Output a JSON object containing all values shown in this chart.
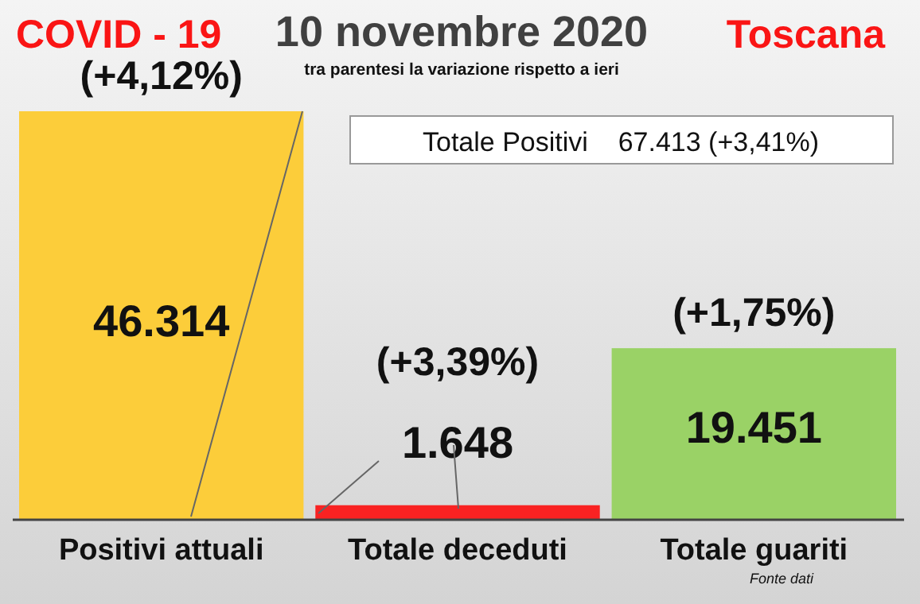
{
  "chart_data": {
    "type": "bar",
    "title": "10 novembre 2020",
    "subtitle": "tra parentesi la variazione rispetto a ieri",
    "categories": [
      "Positivi attuali",
      "Totale deceduti",
      "Totale guariti"
    ],
    "values": [
      46314,
      1648,
      19451
    ],
    "colors": [
      "#fccd3a",
      "#f92222",
      "#9ad266"
    ],
    "value_labels": [
      "46.314",
      "1.648",
      "19.451"
    ],
    "annotations": [
      "COVID - 19",
      "Toscana",
      "Totale Positivi    67.413 (+3,41%)",
      "Fonte dati",
      "(+4,12%)",
      "(+3,39%)",
      "(+1,75%)"
    ]
  }
}
